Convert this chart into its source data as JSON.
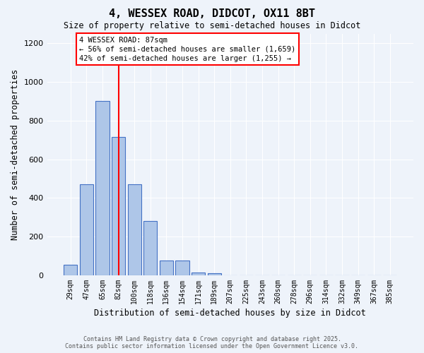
{
  "title": "4, WESSEX ROAD, DIDCOT, OX11 8BT",
  "subtitle": "Size of property relative to semi-detached houses in Didcot",
  "xlabel": "Distribution of semi-detached houses by size in Didcot",
  "ylabel": "Number of semi-detached properties",
  "categories": [
    "29sqm",
    "47sqm",
    "65sqm",
    "82sqm",
    "100sqm",
    "118sqm",
    "136sqm",
    "154sqm",
    "171sqm",
    "189sqm",
    "207sqm",
    "225sqm",
    "243sqm",
    "260sqm",
    "278sqm",
    "296sqm",
    "314sqm",
    "332sqm",
    "349sqm",
    "367sqm",
    "385sqm"
  ],
  "values": [
    55,
    470,
    900,
    715,
    470,
    280,
    75,
    75,
    15,
    10,
    0,
    0,
    0,
    0,
    0,
    0,
    0,
    0,
    0,
    0,
    0
  ],
  "bar_color": "#aec6e8",
  "bar_edge_color": "#4472c4",
  "vline_x": 3.0,
  "vline_color": "red",
  "annotation_title": "4 WESSEX ROAD: 87sqm",
  "annotation_line1": "← 56% of semi-detached houses are smaller (1,659)",
  "annotation_line2": "42% of semi-detached houses are larger (1,255) →",
  "ylim": [
    0,
    1250
  ],
  "yticks": [
    0,
    200,
    400,
    600,
    800,
    1000,
    1200
  ],
  "footer_line1": "Contains HM Land Registry data © Crown copyright and database right 2025.",
  "footer_line2": "Contains public sector information licensed under the Open Government Licence v3.0.",
  "bg_color": "#eef3fa"
}
